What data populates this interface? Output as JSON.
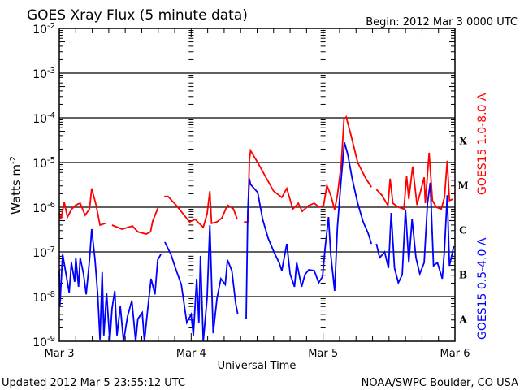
{
  "chart_data": {
    "type": "line",
    "title": "GOES Xray Flux (5 minute data)",
    "begin_label": "Begin:  2012 Mar 3 0000 UTC",
    "xlabel": "Universal Time",
    "ylabel": "Watts m",
    "ylabel_sup": "-2",
    "x_unit": "hours since 2012 Mar 3 0000 UTC",
    "xlim": [
      0,
      72
    ],
    "ylim_log10": [
      -9,
      -2
    ],
    "yscale": "log",
    "grid": "horizontal at each decade below 10^-2",
    "x_ticks": [
      {
        "hour": 0,
        "label": "Mar 3"
      },
      {
        "hour": 24,
        "label": "Mar 4"
      },
      {
        "hour": 48,
        "label": "Mar 5"
      },
      {
        "hour": 72,
        "label": "Mar 6"
      }
    ],
    "y_ticks": [
      {
        "exp": -2,
        "base": "10",
        "sup": "-2"
      },
      {
        "exp": -3,
        "base": "10",
        "sup": "-3"
      },
      {
        "exp": -4,
        "base": "10",
        "sup": "-4"
      },
      {
        "exp": -5,
        "base": "10",
        "sup": "-5"
      },
      {
        "exp": -6,
        "base": "10",
        "sup": "-6"
      },
      {
        "exp": -7,
        "base": "10",
        "sup": "-7"
      },
      {
        "exp": -8,
        "base": "10",
        "sup": "-8"
      },
      {
        "exp": -9,
        "base": "10",
        "sup": "-9"
      }
    ],
    "flare_classes": [
      {
        "label": "X",
        "exp": -4
      },
      {
        "label": "M",
        "exp": -5
      },
      {
        "label": "C",
        "exp": -6
      },
      {
        "label": "B",
        "exp": -7
      },
      {
        "label": "A",
        "exp": -8
      }
    ],
    "series": [
      {
        "name": "GOES15 1.0-8.0 A",
        "color": "#ff0000",
        "value_format": "[hour, log10 flux W/m^2]",
        "segments": [
          [
            [
              0,
              -6.13
            ],
            [
              0.3,
              -6.27
            ],
            [
              0.9,
              -5.89
            ],
            [
              1.5,
              -6.22
            ],
            [
              2.2,
              -6.05
            ],
            [
              3,
              -5.95
            ],
            [
              3.8,
              -5.91
            ],
            [
              4.7,
              -6.18
            ],
            [
              5.5,
              -6.04
            ],
            [
              5.9,
              -5.58
            ],
            [
              6.7,
              -5.95
            ],
            [
              7.4,
              -6.4
            ],
            [
              8.4,
              -6.36
            ]
          ],
          [
            [
              9.6,
              -6.4
            ],
            [
              11.4,
              -6.49
            ],
            [
              13.3,
              -6.42
            ],
            [
              14.3,
              -6.55
            ],
            [
              15.8,
              -6.6
            ],
            [
              16.6,
              -6.55
            ],
            [
              17,
              -6.31
            ],
            [
              18,
              -6.0
            ]
          ],
          [
            [
              19.1,
              -5.76
            ],
            [
              19.8,
              -5.76
            ],
            [
              21.3,
              -5.96
            ],
            [
              23.7,
              -6.33
            ],
            [
              24.7,
              -6.27
            ],
            [
              26.2,
              -6.45
            ],
            [
              26.9,
              -6.15
            ],
            [
              27.4,
              -5.64
            ],
            [
              27.7,
              -6.36
            ],
            [
              28.7,
              -6.33
            ],
            [
              29.6,
              -6.24
            ],
            [
              30.6,
              -5.95
            ],
            [
              31.7,
              -6.04
            ],
            [
              32.4,
              -6.27
            ]
          ],
          [
            [
              33.6,
              -6.33
            ],
            [
              34.3,
              -6.33
            ],
            [
              34.6,
              -4.95
            ],
            [
              34.8,
              -4.73
            ],
            [
              36.1,
              -5.0
            ],
            [
              37.6,
              -5.33
            ],
            [
              39,
              -5.64
            ],
            [
              40.5,
              -5.78
            ],
            [
              41.4,
              -5.58
            ],
            [
              42.5,
              -6.04
            ],
            [
              43.5,
              -5.91
            ],
            [
              44.2,
              -6.09
            ],
            [
              45.4,
              -5.96
            ],
            [
              46.4,
              -5.91
            ],
            [
              47.3,
              -6.0
            ],
            [
              48.1,
              -5.96
            ],
            [
              48.7,
              -5.51
            ],
            [
              49.4,
              -5.73
            ],
            [
              50.1,
              -6.05
            ],
            [
              50.6,
              -5.73
            ],
            [
              51.3,
              -5.05
            ],
            [
              51.8,
              -4.04
            ],
            [
              52.2,
              -3.98
            ],
            [
              53.1,
              -4.4
            ],
            [
              54.3,
              -5.0
            ],
            [
              55.8,
              -5.36
            ],
            [
              56.8,
              -5.55
            ]
          ],
          [
            [
              57.7,
              -5.6
            ],
            [
              58.7,
              -5.73
            ],
            [
              59.8,
              -5.96
            ],
            [
              60.2,
              -5.36
            ],
            [
              60.7,
              -5.91
            ],
            [
              61.7,
              -6.0
            ],
            [
              62.7,
              -6.04
            ],
            [
              63.2,
              -5.31
            ],
            [
              63.6,
              -5.82
            ],
            [
              64.3,
              -5.09
            ],
            [
              65.1,
              -5.95
            ],
            [
              66.4,
              -5.33
            ],
            [
              66.6,
              -5.91
            ],
            [
              67.3,
              -4.78
            ],
            [
              67.9,
              -5.85
            ],
            [
              68.6,
              -6.0
            ],
            [
              69.5,
              -6.04
            ],
            [
              70.1,
              -5.78
            ],
            [
              70.6,
              -4.96
            ],
            [
              71,
              -5.85
            ],
            [
              71.6,
              -5.82
            ]
          ]
        ]
      },
      {
        "name": "GOES15 0.5-4.0 A",
        "color": "#0000ff",
        "value_format": "[hour, log10 flux W/m^2]",
        "segments": [
          [
            [
              0,
              -7.42
            ],
            [
              0.1,
              -8.22
            ],
            [
              0.6,
              -7.05
            ],
            [
              1.3,
              -7.55
            ],
            [
              1.8,
              -7.91
            ],
            [
              2.2,
              -7.24
            ],
            [
              2.8,
              -7.67
            ],
            [
              3,
              -7.13
            ],
            [
              3.5,
              -7.78
            ],
            [
              3.8,
              -7.13
            ],
            [
              4.4,
              -7.49
            ],
            [
              4.9,
              -7.95
            ],
            [
              5.5,
              -7.18
            ],
            [
              5.9,
              -6.49
            ],
            [
              6.5,
              -7.18
            ],
            [
              7,
              -7.95
            ],
            [
              7.4,
              -8.96
            ],
            [
              7.8,
              -7.45
            ],
            [
              8.1,
              -8.87
            ],
            [
              8.6,
              -7.91
            ],
            [
              9.2,
              -9
            ],
            [
              9.6,
              -8.27
            ],
            [
              10.1,
              -7.87
            ],
            [
              10.5,
              -8.87
            ],
            [
              11.1,
              -8.22
            ],
            [
              11.7,
              -9
            ],
            [
              12.4,
              -8.45
            ],
            [
              13.2,
              -8.09
            ],
            [
              13.9,
              -9
            ],
            [
              14.3,
              -8.5
            ],
            [
              15.1,
              -8.36
            ],
            [
              15.5,
              -9
            ],
            [
              16.1,
              -8.27
            ],
            [
              16.7,
              -7.6
            ],
            [
              17.4,
              -7.95
            ],
            [
              17.9,
              -7.18
            ],
            [
              18.5,
              -7.05
            ]
          ],
          [
            [
              19.2,
              -6.78
            ],
            [
              20.3,
              -7.05
            ],
            [
              21.3,
              -7.42
            ],
            [
              22.2,
              -7.73
            ],
            [
              23.2,
              -8.58
            ],
            [
              24,
              -8.4
            ],
            [
              24.4,
              -8.87
            ],
            [
              25,
              -7.6
            ],
            [
              25.4,
              -8.58
            ],
            [
              25.7,
              -7.09
            ],
            [
              26.2,
              -9
            ],
            [
              26.9,
              -8.04
            ],
            [
              27.4,
              -6.4
            ],
            [
              28,
              -8.82
            ],
            [
              28.7,
              -8.04
            ],
            [
              29.4,
              -7.6
            ],
            [
              30.2,
              -7.73
            ],
            [
              30.6,
              -7.18
            ],
            [
              31.4,
              -7.42
            ],
            [
              32.1,
              -8.15
            ],
            [
              32.5,
              -8.4
            ]
          ],
          [
            [
              34,
              -8.5
            ],
            [
              34.3,
              -6.09
            ],
            [
              34.6,
              -5.36
            ],
            [
              34.8,
              -5.49
            ],
            [
              36.1,
              -5.67
            ],
            [
              37,
              -6.27
            ],
            [
              38,
              -6.69
            ],
            [
              39.2,
              -7.04
            ],
            [
              40,
              -7.24
            ],
            [
              40.5,
              -7.42
            ],
            [
              41.4,
              -6.82
            ],
            [
              42,
              -7.49
            ],
            [
              42.8,
              -7.78
            ],
            [
              43.2,
              -7.24
            ],
            [
              44.1,
              -7.78
            ],
            [
              44.7,
              -7.51
            ],
            [
              45.4,
              -7.4
            ],
            [
              46.4,
              -7.42
            ],
            [
              47.2,
              -7.69
            ],
            [
              47.9,
              -7.55
            ],
            [
              48.4,
              -6.87
            ],
            [
              49,
              -6.22
            ],
            [
              49.4,
              -7.05
            ],
            [
              50.1,
              -7.87
            ],
            [
              50.6,
              -6.45
            ],
            [
              51.3,
              -5.36
            ],
            [
              51.9,
              -4.55
            ],
            [
              52.5,
              -4.82
            ],
            [
              53.3,
              -5.36
            ],
            [
              54.3,
              -5.91
            ],
            [
              55.3,
              -6.33
            ],
            [
              56.2,
              -6.58
            ],
            [
              56.8,
              -6.82
            ]
          ],
          [
            [
              57.7,
              -6.82
            ],
            [
              58.3,
              -7.13
            ],
            [
              59.2,
              -7.0
            ],
            [
              59.9,
              -7.36
            ],
            [
              60.4,
              -6.13
            ],
            [
              61,
              -7.36
            ],
            [
              61.7,
              -7.69
            ],
            [
              62.4,
              -7.51
            ],
            [
              63,
              -6.05
            ],
            [
              63.6,
              -7.24
            ],
            [
              64.2,
              -6.27
            ],
            [
              64.9,
              -7.13
            ],
            [
              65.6,
              -7.49
            ],
            [
              66.4,
              -7.24
            ],
            [
              67,
              -5.91
            ],
            [
              67.5,
              -5.45
            ],
            [
              68.1,
              -7.31
            ],
            [
              68.8,
              -7.24
            ],
            [
              69.7,
              -7.6
            ],
            [
              70.1,
              -6.95
            ],
            [
              70.6,
              -5.73
            ],
            [
              71,
              -7.31
            ],
            [
              71.8,
              -6.87
            ]
          ]
        ]
      }
    ]
  },
  "footer": {
    "updated": "Updated 2012 Mar  5 23:55:12 UTC",
    "credit": "NOAA/SWPC Boulder, CO USA"
  }
}
